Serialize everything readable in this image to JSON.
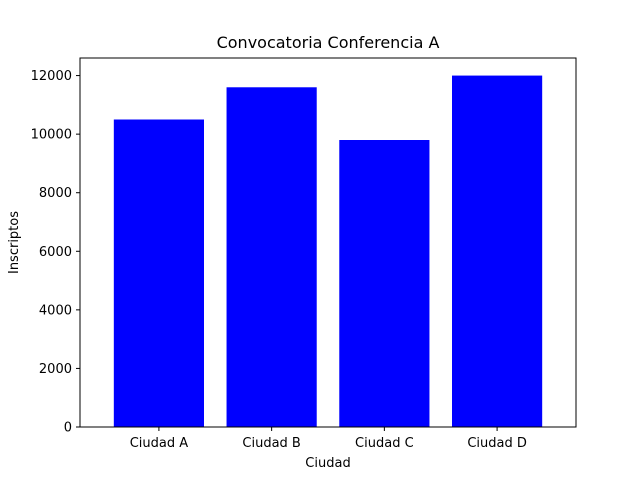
{
  "chart_data": {
    "type": "bar",
    "title": "Convocatoria Conferencia A",
    "xlabel": "Ciudad",
    "ylabel": "Inscriptos",
    "categories": [
      "Ciudad A",
      "Ciudad B",
      "Ciudad C",
      "Ciudad D"
    ],
    "values": [
      10500,
      11600,
      9800,
      12000
    ],
    "ylim": [
      0,
      12600
    ],
    "yticks": [
      "0",
      "2000",
      "4000",
      "6000",
      "8000",
      "10000",
      "12000"
    ],
    "grid": false,
    "legend": "none",
    "bar_color": "#0000ff"
  }
}
